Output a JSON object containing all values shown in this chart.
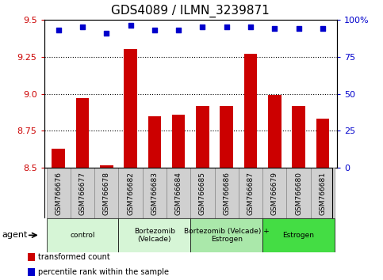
{
  "title": "GDS4089 / ILMN_3239871",
  "samples": [
    "GSM766676",
    "GSM766677",
    "GSM766678",
    "GSM766682",
    "GSM766683",
    "GSM766684",
    "GSM766685",
    "GSM766686",
    "GSM766687",
    "GSM766679",
    "GSM766680",
    "GSM766681"
  ],
  "bar_values": [
    8.63,
    8.97,
    8.52,
    9.3,
    8.85,
    8.86,
    8.92,
    8.92,
    9.27,
    8.99,
    8.92,
    8.83
  ],
  "percentile_values": [
    93,
    95,
    91,
    96,
    93,
    93,
    95,
    95,
    95,
    94,
    94,
    94
  ],
  "bar_color": "#cc0000",
  "percentile_color": "#0000cc",
  "ylim_left": [
    8.5,
    9.5
  ],
  "ylim_right": [
    0,
    100
  ],
  "yticks_left": [
    8.5,
    8.75,
    9.0,
    9.25,
    9.5
  ],
  "yticks_right": [
    0,
    25,
    50,
    75,
    100
  ],
  "groups": [
    {
      "label": "control",
      "start": 0,
      "end": 3,
      "color": "#d6f5d6"
    },
    {
      "label": "Bortezomib\n(Velcade)",
      "start": 3,
      "end": 6,
      "color": "#d6f5d6"
    },
    {
      "label": "Bortezomib (Velcade) +\nEstrogen",
      "start": 6,
      "end": 9,
      "color": "#aae8aa"
    },
    {
      "label": "Estrogen",
      "start": 9,
      "end": 12,
      "color": "#44dd44"
    }
  ],
  "agent_label": "agent",
  "legend_items": [
    {
      "color": "#cc0000",
      "label": "transformed count"
    },
    {
      "color": "#0000cc",
      "label": "percentile rank within the sample"
    }
  ],
  "grid_lines": [
    8.75,
    9.0,
    9.25
  ],
  "background_color": "#ffffff",
  "tick_label_color_left": "#cc0000",
  "tick_label_color_right": "#0000cc",
  "title_fontsize": 11,
  "bar_width": 0.55,
  "cell_color": "#d0d0d0",
  "cell_border": "#888888"
}
